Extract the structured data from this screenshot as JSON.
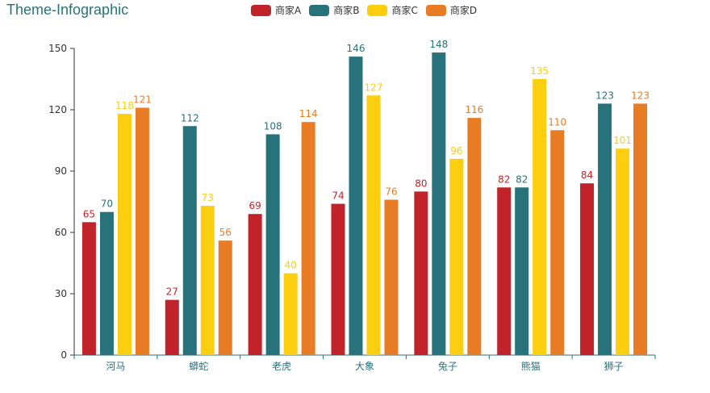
{
  "title": "Theme-Infographic",
  "legend": [
    {
      "name": "商家A",
      "color": "#C1232B"
    },
    {
      "name": "商家B",
      "color": "#27727B"
    },
    {
      "name": "商家C",
      "color": "#FCCE10"
    },
    {
      "name": "商家D",
      "color": "#E87C25"
    }
  ],
  "chart_data": {
    "type": "bar",
    "categories": [
      "河马",
      "蟒蛇",
      "老虎",
      "大象",
      "兔子",
      "熊猫",
      "狮子"
    ],
    "series": [
      {
        "name": "商家A",
        "color": "#C1232B",
        "values": [
          65,
          27,
          69,
          74,
          80,
          82,
          84
        ]
      },
      {
        "name": "商家B",
        "color": "#27727B",
        "values": [
          70,
          112,
          108,
          146,
          148,
          82,
          123
        ]
      },
      {
        "name": "商家C",
        "color": "#FCCE10",
        "values": [
          118,
          73,
          40,
          127,
          96,
          135,
          101
        ]
      },
      {
        "name": "商家D",
        "color": "#E87C25",
        "values": [
          121,
          56,
          114,
          76,
          116,
          110,
          123
        ]
      }
    ],
    "yticks": [
      "0",
      "30",
      "60",
      "90",
      "120",
      "150"
    ],
    "ylim": [
      0,
      150
    ],
    "grid": false,
    "legend_position": "top-center"
  }
}
